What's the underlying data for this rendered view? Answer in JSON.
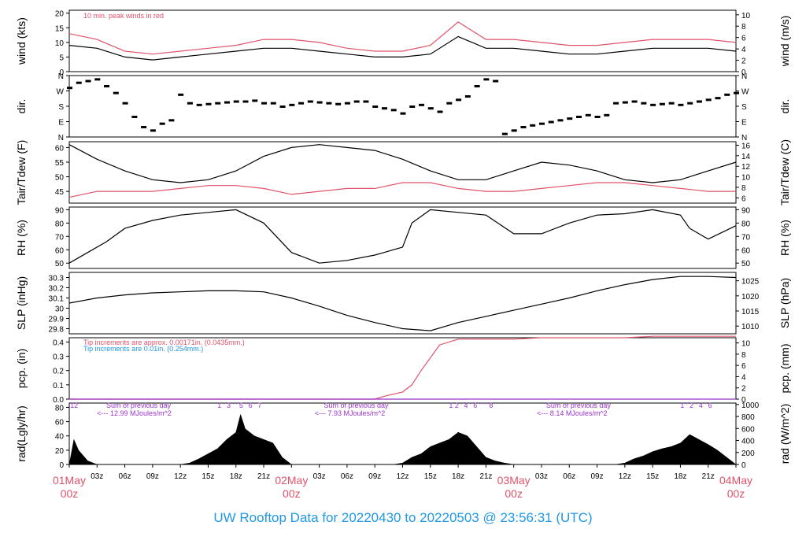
{
  "title": "UW Rooftop Data for 20220430  to  20220503 @ 23:56:31  (UTC)",
  "colors": {
    "text": "#000000",
    "accent_red": "#DF536B",
    "accent_blue": "#2297E6",
    "purple": "#9933CC"
  },
  "chart_data": [
    {
      "id": "wind",
      "type": "line",
      "ylabel_left": "wind (kts)",
      "ylabel_right": "wind (m/s)",
      "ylim": [
        0,
        21
      ],
      "ticks_left": [
        0,
        5,
        10,
        15,
        20
      ],
      "ticks_right": [
        0,
        2,
        4,
        6,
        8,
        10
      ],
      "annotation": "10 min. peak winds in red",
      "series": [
        {
          "name": "wind",
          "color": "#000000",
          "x": [
            0,
            3,
            6,
            9,
            12,
            15,
            18,
            21,
            24,
            27,
            30,
            33,
            36,
            39,
            42,
            45,
            48,
            51,
            54,
            57,
            60,
            63,
            66,
            69,
            72
          ],
          "y": [
            9,
            8,
            5,
            4,
            5,
            6,
            7,
            8,
            8,
            7,
            6,
            5,
            5,
            6,
            12,
            8,
            8,
            7,
            6,
            6,
            7,
            8,
            8,
            8,
            7
          ]
        },
        {
          "name": "peak",
          "color": "#DF536B",
          "x": [
            0,
            3,
            6,
            9,
            12,
            15,
            18,
            21,
            24,
            27,
            30,
            33,
            36,
            39,
            42,
            45,
            48,
            51,
            54,
            57,
            60,
            63,
            66,
            69,
            72
          ],
          "y": [
            13,
            11,
            7,
            6,
            7,
            8,
            9,
            11,
            11,
            10,
            8,
            7,
            7,
            9,
            17,
            11,
            11,
            10,
            9,
            9,
            10,
            11,
            11,
            11,
            10
          ]
        }
      ]
    },
    {
      "id": "dir",
      "type": "scatter",
      "ylabel_left": "dir.",
      "ylabel_right": "dir.",
      "ylim": [
        0,
        360
      ],
      "ticks_left_labels": [
        "N",
        "E",
        "S",
        "W",
        "N"
      ],
      "ticks_right_labels": [
        "N",
        "E",
        "S",
        "W",
        "N"
      ],
      "series": [
        {
          "name": "dir",
          "color": "#000000",
          "x": [
            0,
            1,
            2,
            3,
            4,
            5,
            6,
            7,
            8,
            9,
            10,
            11,
            12,
            13,
            14,
            15,
            16,
            17,
            18,
            19,
            20,
            21,
            22,
            23,
            24,
            25,
            26,
            27,
            28,
            29,
            30,
            31,
            32,
            33,
            34,
            35,
            36,
            37,
            38,
            39,
            40,
            41,
            42,
            43,
            44,
            45,
            46,
            47,
            48,
            49,
            50,
            51,
            52,
            53,
            54,
            55,
            56,
            57,
            58,
            59,
            60,
            61,
            62,
            63,
            64,
            65,
            66,
            67,
            68,
            69,
            70,
            71,
            72
          ],
          "y": [
            290,
            320,
            330,
            340,
            300,
            260,
            200,
            120,
            60,
            40,
            80,
            100,
            250,
            200,
            190,
            195,
            200,
            205,
            210,
            210,
            215,
            200,
            200,
            180,
            190,
            200,
            210,
            205,
            200,
            195,
            200,
            210,
            210,
            180,
            170,
            160,
            140,
            180,
            190,
            170,
            150,
            200,
            220,
            240,
            300,
            340,
            330,
            20,
            40,
            60,
            70,
            80,
            90,
            100,
            110,
            120,
            130,
            120,
            130,
            200,
            205,
            210,
            200,
            190,
            195,
            200,
            190,
            200,
            210,
            220,
            230,
            250,
            260
          ]
        }
      ]
    },
    {
      "id": "temp",
      "type": "line",
      "ylabel_left": "Tair/Tdew (F)",
      "ylabel_right": "Tair/Tdew (C)",
      "ylim": [
        41,
        62
      ],
      "ticks_left": [
        45,
        50,
        55,
        60
      ],
      "ticks_right": [
        6,
        8,
        10,
        12,
        14,
        16
      ],
      "series": [
        {
          "name": "Tair",
          "color": "#000000",
          "x": [
            0,
            3,
            6,
            9,
            12,
            15,
            18,
            21,
            24,
            27,
            30,
            33,
            36,
            39,
            42,
            45,
            48,
            51,
            54,
            57,
            60,
            63,
            66,
            69,
            72
          ],
          "y": [
            61,
            56,
            52,
            49,
            48,
            49,
            52,
            57,
            60,
            61,
            60,
            59,
            56,
            52,
            49,
            49,
            52,
            55,
            54,
            52,
            49,
            48,
            49,
            52,
            55
          ]
        },
        {
          "name": "Tdew",
          "color": "#DF536B",
          "x": [
            0,
            3,
            6,
            9,
            12,
            15,
            18,
            21,
            24,
            27,
            30,
            33,
            36,
            39,
            42,
            45,
            48,
            51,
            54,
            57,
            60,
            63,
            66,
            69,
            72
          ],
          "y": [
            43,
            45,
            45,
            45,
            46,
            47,
            47,
            46,
            44,
            45,
            46,
            46,
            48,
            48,
            46,
            45,
            45,
            46,
            47,
            48,
            48,
            47,
            46,
            45,
            45
          ]
        }
      ]
    },
    {
      "id": "rh",
      "type": "line",
      "ylabel_left": "RH (%)",
      "ylabel_right": "RH (%)",
      "ylim": [
        46,
        92
      ],
      "ticks_left": [
        50,
        60,
        70,
        80,
        90
      ],
      "ticks_right": [
        50,
        60,
        70,
        80,
        90
      ],
      "series": [
        {
          "name": "RH",
          "color": "#000000",
          "x": [
            0,
            2,
            4,
            6,
            9,
            12,
            15,
            18,
            21,
            24,
            27,
            30,
            33,
            34,
            36,
            37,
            39,
            42,
            45,
            48,
            51,
            54,
            57,
            60,
            63,
            66,
            67,
            69,
            72
          ],
          "y": [
            50,
            58,
            66,
            76,
            82,
            86,
            88,
            90,
            80,
            58,
            50,
            52,
            56,
            58,
            62,
            80,
            90,
            88,
            86,
            72,
            72,
            80,
            86,
            87,
            90,
            86,
            76,
            68,
            78
          ]
        }
      ]
    },
    {
      "id": "slp",
      "type": "line",
      "ylabel_left": "SLP (inHg)",
      "ylabel_right": "SLP (hPa)",
      "ylim": [
        29.75,
        30.35
      ],
      "ticks_left": [
        29.8,
        29.9,
        30.0,
        30.1,
        30.2,
        30.3
      ],
      "ticks_right": [
        1010,
        1015,
        1020,
        1025
      ],
      "series": [
        {
          "name": "SLP",
          "color": "#000000",
          "x": [
            0,
            3,
            6,
            9,
            12,
            15,
            18,
            21,
            24,
            27,
            30,
            33,
            36,
            39,
            42,
            45,
            48,
            51,
            54,
            57,
            60,
            63,
            66,
            69,
            72
          ],
          "y": [
            30.05,
            30.1,
            30.13,
            30.15,
            30.16,
            30.17,
            30.17,
            30.16,
            30.1,
            30.02,
            29.93,
            29.86,
            29.8,
            29.78,
            29.86,
            29.92,
            29.98,
            30.04,
            30.1,
            30.17,
            30.23,
            30.28,
            30.31,
            30.31,
            30.3
          ]
        }
      ]
    },
    {
      "id": "pcp",
      "type": "line",
      "ylabel_left": "pcp. (in)",
      "ylabel_right": "pcp. (mm)",
      "ylim": [
        0,
        0.43
      ],
      "ticks_left": [
        0,
        0.1,
        0.2,
        0.3,
        0.4
      ],
      "ticks_left_labels": [
        "0.0",
        "0.1",
        "0.2",
        "0.3",
        "0.4"
      ],
      "ticks_right": [
        0,
        2,
        4,
        6,
        8,
        10
      ],
      "note_red": "Tip increments are approx. 0.00171in. (0.0435mm.)",
      "note_blue": "Tip increments are 0.01in. (0.254mm.)",
      "series": [
        {
          "name": "red",
          "color": "#DF536B",
          "x": [
            0,
            33,
            34,
            36,
            37,
            38,
            40,
            42,
            48,
            51,
            54,
            60,
            63,
            72
          ],
          "y": [
            0,
            0,
            0.02,
            0.05,
            0.1,
            0.2,
            0.38,
            0.42,
            0.42,
            0.43,
            0.43,
            0.43,
            0.44,
            0.44
          ]
        },
        {
          "name": "blue",
          "color": "#9933CC",
          "x": [
            0,
            33,
            36,
            72
          ],
          "y": [
            0,
            0,
            0,
            0
          ]
        }
      ]
    },
    {
      "id": "rad",
      "type": "area",
      "ylabel_left": "rad(Lgly/hr)",
      "ylabel_right": "rad (W/m^2)",
      "ylim": [
        0,
        86
      ],
      "ticks_left": [
        0,
        20,
        40,
        60,
        80
      ],
      "ticks_right": [
        0,
        200,
        400,
        600,
        800,
        1000
      ],
      "annotations": [
        {
          "text": "12",
          "x": 0.1,
          "row": 0
        },
        {
          "text": "Sum of previous day",
          "x": 4,
          "row": 0
        },
        {
          "text": "<--- 12.99 MJoules/m^2",
          "x": 3,
          "row": 1
        },
        {
          "text": "1  '  3  '  '  5  '  6  '  7",
          "x": 16,
          "row": 0
        },
        {
          "text": "Sum of previous day",
          "x": 27.5,
          "row": 0
        },
        {
          "text": "<--- 7.93 MJoules/m^2",
          "x": 26.5,
          "row": 1
        },
        {
          "text": "1  2  '  4  '  6  '  '  '  8",
          "x": 41,
          "row": 0
        },
        {
          "text": "Sum of previous day",
          "x": 51.5,
          "row": 0
        },
        {
          "text": "<--- 8.14 MJoules/m^2",
          "x": 50.5,
          "row": 1
        },
        {
          "text": "1  '  2  '  4  '  6",
          "x": 66,
          "row": 0
        }
      ],
      "series": [
        {
          "name": "rad",
          "color": "#000000",
          "x": [
            0,
            0.5,
            1,
            2,
            3,
            12,
            13,
            14,
            15,
            16,
            17,
            18,
            18.5,
            19,
            20,
            21,
            22,
            23,
            24,
            35,
            36,
            37,
            38,
            39,
            40,
            41,
            42,
            43,
            44,
            45,
            46,
            47,
            48,
            59,
            60,
            61,
            62,
            63,
            64,
            65,
            66,
            67,
            68,
            69,
            70,
            71,
            72
          ],
          "y": [
            0,
            35,
            20,
            5,
            0,
            0,
            2,
            8,
            15,
            22,
            35,
            45,
            70,
            50,
            40,
            35,
            30,
            10,
            0,
            0,
            2,
            10,
            15,
            25,
            30,
            35,
            45,
            40,
            25,
            10,
            5,
            2,
            0,
            0,
            2,
            8,
            12,
            18,
            22,
            25,
            30,
            42,
            35,
            28,
            20,
            10,
            0
          ]
        }
      ]
    }
  ],
  "xaxis": {
    "tick_labels": [
      "03z",
      "06z",
      "09z",
      "12z",
      "15z",
      "18z",
      "21z",
      "03z",
      "06z",
      "09z",
      "12z",
      "15z",
      "18z",
      "21z",
      "03z",
      "06z",
      "09z",
      "12z",
      "15z",
      "18z",
      "21z"
    ],
    "day_labels": [
      {
        "day": "01May",
        "hour": "00z"
      },
      {
        "day": "02May",
        "hour": "00z"
      },
      {
        "day": "03May",
        "hour": "00z"
      },
      {
        "day": "04May",
        "hour": "00z"
      }
    ]
  }
}
